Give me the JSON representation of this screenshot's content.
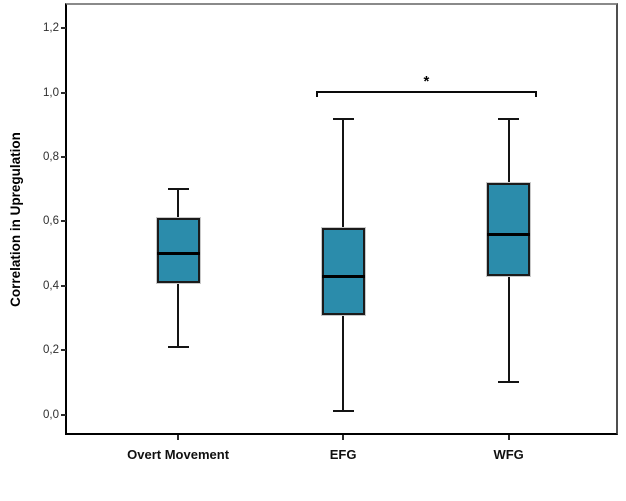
{
  "chart_data": {
    "type": "boxplot",
    "title": "",
    "ylabel": "Correlation in Upregulation",
    "xlabel": "",
    "ylim": [
      0.0,
      1.2
    ],
    "yticks": [
      0.0,
      0.2,
      0.4,
      0.6,
      0.8,
      1.0,
      1.2
    ],
    "ytick_labels": [
      "0,0",
      "0,2",
      "0,4",
      "0,6",
      "0,8",
      "1,0",
      "1,2"
    ],
    "decimal_separator": ",",
    "grid": false,
    "legend": "none",
    "categories": [
      "Overt Movement",
      "EFG",
      "WFG"
    ],
    "series": [
      {
        "name": "Overt Movement",
        "whisker_low": 0.21,
        "q1": 0.41,
        "median": 0.5,
        "q3": 0.61,
        "whisker_high": 0.7,
        "outliers": []
      },
      {
        "name": "EFG",
        "whisker_low": 0.01,
        "q1": 0.31,
        "median": 0.43,
        "q3": 0.58,
        "whisker_high": 0.92,
        "outliers": []
      },
      {
        "name": "WFG",
        "whisker_low": 0.1,
        "q1": 0.43,
        "median": 0.56,
        "q3": 0.72,
        "whisker_high": 0.92,
        "outliers": []
      }
    ],
    "annotations": [
      {
        "type": "significance-bracket",
        "label": "*",
        "from": "EFG",
        "to": "WFG",
        "y_value": 1.005
      }
    ],
    "colors": {
      "box_fill": "#2B8CAB",
      "box_border": "#1b1b1b",
      "median": "#000000",
      "whisker": "#141414",
      "axis": "#000000",
      "frame_top": "#8a8a8a",
      "frame_right": "#4f4f4f",
      "background": "#ffffff"
    }
  }
}
